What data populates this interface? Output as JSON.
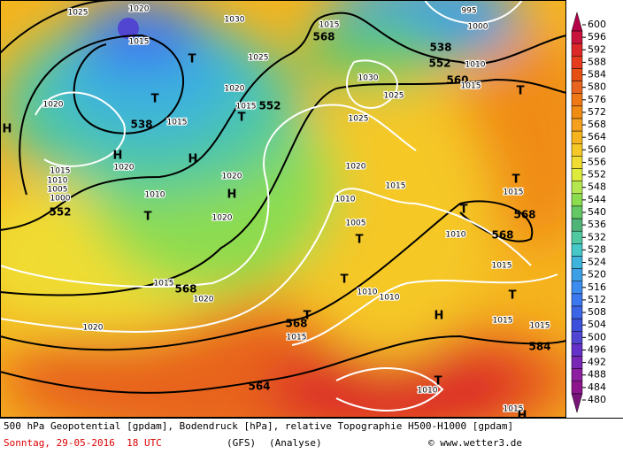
{
  "map": {
    "labels": [
      "1025",
      "1020",
      "1015",
      "1030",
      "1025",
      "1020",
      "1015",
      "552",
      "1015",
      "538",
      "1020",
      "H",
      "H",
      "1020",
      "H",
      "T",
      "T",
      "T",
      "1015",
      "1010",
      "1005",
      "1000",
      "552",
      "1010",
      "T",
      "H",
      "1020",
      "1020",
      "1015",
      "568",
      "1020",
      "1020",
      "568",
      "T",
      "1015",
      "564",
      "568",
      "1015",
      "1030",
      "1025",
      "1025",
      "1020",
      "1015",
      "1010",
      "1005",
      "T",
      "T",
      "1010",
      "1010",
      "538",
      "552",
      "560",
      "1015",
      "1010",
      "995",
      "1000",
      "1015",
      "T",
      "T",
      "T",
      "1010",
      "568",
      "568",
      "1015",
      "T",
      "H",
      "1015",
      "1015",
      "584",
      "T",
      "1010",
      "1015",
      "H"
    ]
  },
  "legend": {
    "values": [
      600,
      596,
      592,
      588,
      584,
      580,
      576,
      572,
      568,
      564,
      560,
      556,
      552,
      548,
      544,
      540,
      536,
      532,
      528,
      524,
      520,
      516,
      512,
      508,
      504,
      500,
      496,
      492,
      488,
      484,
      480
    ],
    "colors": [
      "#b40048",
      "#c8143c",
      "#dc2828",
      "#e63c1e",
      "#e65014",
      "#e8641e",
      "#f07814",
      "#f08c14",
      "#f5a01e",
      "#f5b41e",
      "#f5c828",
      "#f0dc32",
      "#dceb3c",
      "#b4e650",
      "#8cdc50",
      "#64c864",
      "#50b478",
      "#50c8a0",
      "#46c8c8",
      "#3cb4dc",
      "#3ca0e6",
      "#3c8cf0",
      "#3c78f0",
      "#3c64e6",
      "#3c50dc",
      "#5046d2",
      "#6432c8",
      "#7828b4",
      "#8c1ea0",
      "#8c148c",
      "#781478"
    ]
  },
  "footer": {
    "line1": "500 hPa Geopotential [gpdam], Bodendruck [hPa], relative Topographie H500-H1000 [gpdam]",
    "date": "Sonntag, 29-05-2016  18 UTC",
    "model": "(GFS)",
    "run": "(Analyse)",
    "credit": "© www.wetter3.de"
  }
}
